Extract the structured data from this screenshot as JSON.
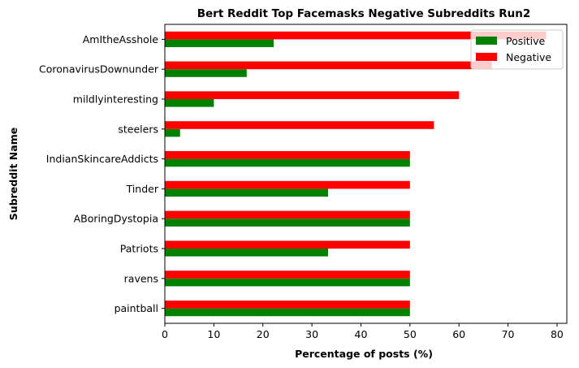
{
  "chart_data": {
    "type": "bar",
    "orientation": "horizontal",
    "title": "Bert Reddit Top Facemasks Negative Subreddits Run2",
    "xlabel": "Percentage of posts (%)",
    "ylabel": "Subreddit Name",
    "xlim": [
      0,
      82
    ],
    "xticks": [
      0,
      10,
      20,
      30,
      40,
      50,
      60,
      70,
      80
    ],
    "categories": [
      "paintball",
      "ravens",
      "Patriots",
      "ABoringDystopia",
      "Tinder",
      "IndianSkincareAddicts",
      "steelers",
      "mildlyinteresting",
      "CoronavirusDownunder",
      "AmItheAsshole"
    ],
    "series": [
      {
        "name": "Positive",
        "color": "#008000",
        "values": [
          50,
          50,
          33.3,
          50,
          33.3,
          50,
          3.1,
          10,
          16.7,
          22.2
        ]
      },
      {
        "name": "Negative",
        "color": "#ff0000",
        "values": [
          50,
          50,
          50,
          50,
          50,
          50,
          54.9,
          60,
          66.7,
          77.8
        ]
      }
    ],
    "legend_position": "top-right",
    "grid": false
  }
}
